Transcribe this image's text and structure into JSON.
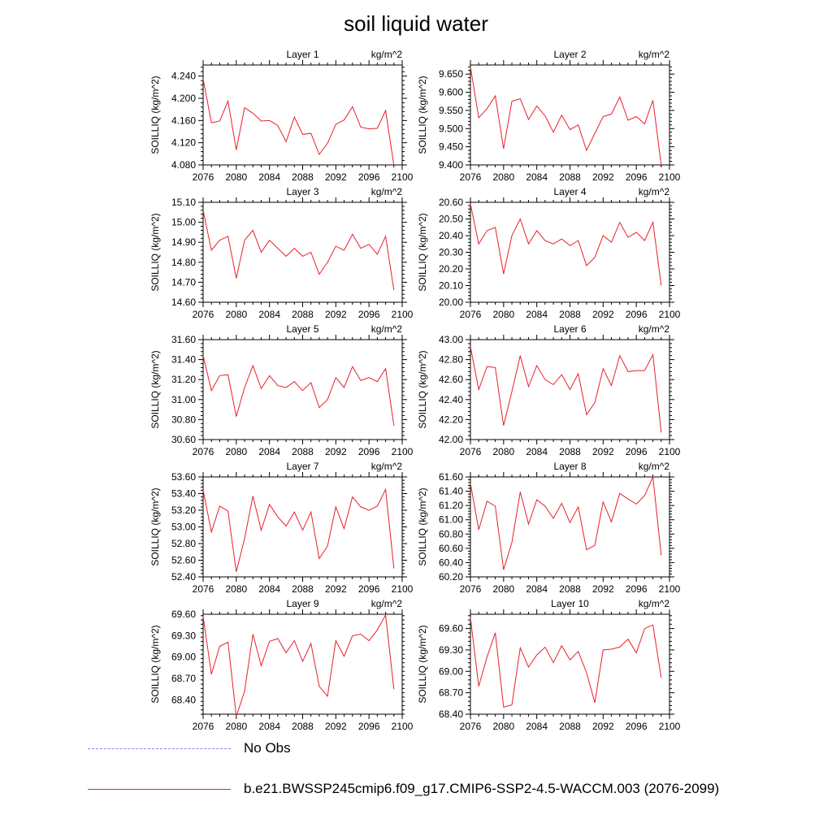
{
  "title": "soil liquid water",
  "legend": [
    {
      "label": "No Obs",
      "color": "#8080ff",
      "style": "dashed"
    },
    {
      "label": "b.e21.BWSSP245cmip6.f09_g17.CMIP6-SSP2-4.5-WACCM.003 (2076-2099)",
      "color": "#e8202a",
      "style": "solid"
    }
  ],
  "chart_data": [
    {
      "type": "line",
      "title": "Layer 1",
      "units": "kg/m^2",
      "ylabel": "SOILLIQ  (kg/m^2)",
      "xlim": [
        2076,
        2100
      ],
      "xticks": [
        "2076",
        "2080",
        "2084",
        "2088",
        "2092",
        "2096",
        "2100"
      ],
      "ylim": [
        4.08,
        4.26
      ],
      "yticks": [
        "4.080",
        "4.120",
        "4.160",
        "4.200",
        "4.240"
      ],
      "x": [
        2076,
        2077,
        2078,
        2079,
        2080,
        2081,
        2082,
        2083,
        2084,
        2085,
        2086,
        2087,
        2088,
        2089,
        2090,
        2091,
        2092,
        2093,
        2094,
        2095,
        2096,
        2097,
        2098,
        2099
      ],
      "series": [
        {
          "values": [
            4.235,
            4.156,
            4.159,
            4.195,
            4.107,
            4.183,
            4.173,
            4.159,
            4.16,
            4.151,
            4.122,
            4.166,
            4.135,
            4.137,
            4.099,
            4.119,
            4.153,
            4.161,
            4.185,
            4.148,
            4.145,
            4.146,
            4.178,
            4.079
          ]
        }
      ]
    },
    {
      "type": "line",
      "title": "Layer 2",
      "units": "kg/m^2",
      "ylabel": "SOILLIQ  (kg/m^2)",
      "xlim": [
        2076,
        2100
      ],
      "xticks": [
        "2076",
        "2080",
        "2084",
        "2088",
        "2092",
        "2096",
        "2100"
      ],
      "ylim": [
        9.4,
        9.675
      ],
      "yticks": [
        "9.400",
        "9.450",
        "9.500",
        "9.550",
        "9.600",
        "9.650"
      ],
      "x": [
        2076,
        2077,
        2078,
        2079,
        2080,
        2081,
        2082,
        2083,
        2084,
        2085,
        2086,
        2087,
        2088,
        2089,
        2090,
        2091,
        2092,
        2093,
        2094,
        2095,
        2096,
        2097,
        2098,
        2099
      ],
      "series": [
        {
          "values": [
            9.67,
            9.53,
            9.555,
            9.59,
            9.445,
            9.575,
            9.582,
            9.525,
            9.562,
            9.535,
            9.49,
            9.537,
            9.497,
            9.51,
            9.44,
            9.487,
            9.533,
            9.54,
            9.587,
            9.523,
            9.533,
            9.513,
            9.578,
            9.4
          ]
        }
      ]
    },
    {
      "type": "line",
      "title": "Layer 3",
      "units": "kg/m^2",
      "ylabel": "SOILLIQ  (kg/m^2)",
      "xlim": [
        2076,
        2100
      ],
      "xticks": [
        "2076",
        "2080",
        "2084",
        "2088",
        "2092",
        "2096",
        "2100"
      ],
      "ylim": [
        14.6,
        15.1
      ],
      "yticks": [
        "14.60",
        "14.70",
        "14.80",
        "14.90",
        "15.00",
        "15.10"
      ],
      "x": [
        2076,
        2077,
        2078,
        2079,
        2080,
        2081,
        2082,
        2083,
        2084,
        2085,
        2086,
        2087,
        2088,
        2089,
        2090,
        2091,
        2092,
        2093,
        2094,
        2095,
        2096,
        2097,
        2098,
        2099
      ],
      "series": [
        {
          "values": [
            15.06,
            14.86,
            14.91,
            14.93,
            14.72,
            14.91,
            14.96,
            14.85,
            14.91,
            14.87,
            14.83,
            14.87,
            14.83,
            14.85,
            14.74,
            14.8,
            14.88,
            14.86,
            14.94,
            14.87,
            14.89,
            14.84,
            14.93,
            14.66
          ]
        }
      ]
    },
    {
      "type": "line",
      "title": "Layer 4",
      "units": "kg/m^2",
      "ylabel": "SOILLIQ  (kg/m^2)",
      "xlim": [
        2076,
        2100
      ],
      "xticks": [
        "2076",
        "2080",
        "2084",
        "2088",
        "2092",
        "2096",
        "2100"
      ],
      "ylim": [
        20.0,
        20.6
      ],
      "yticks": [
        "20.00",
        "20.10",
        "20.20",
        "20.30",
        "20.40",
        "20.50",
        "20.60"
      ],
      "x": [
        2076,
        2077,
        2078,
        2079,
        2080,
        2081,
        2082,
        2083,
        2084,
        2085,
        2086,
        2087,
        2088,
        2089,
        2090,
        2091,
        2092,
        2093,
        2094,
        2095,
        2096,
        2097,
        2098,
        2099
      ],
      "series": [
        {
          "values": [
            20.59,
            20.35,
            20.43,
            20.45,
            20.17,
            20.4,
            20.5,
            20.35,
            20.43,
            20.37,
            20.35,
            20.38,
            20.34,
            20.37,
            20.22,
            20.27,
            20.4,
            20.36,
            20.48,
            20.39,
            20.42,
            20.37,
            20.48,
            20.1
          ]
        }
      ]
    },
    {
      "type": "line",
      "title": "Layer 5",
      "units": "kg/m^2",
      "ylabel": "SOILLIQ  (kg/m^2)",
      "xlim": [
        2076,
        2100
      ],
      "xticks": [
        "2076",
        "2080",
        "2084",
        "2088",
        "2092",
        "2096",
        "2100"
      ],
      "ylim": [
        30.6,
        31.6
      ],
      "yticks": [
        "30.60",
        "30.80",
        "31.00",
        "31.20",
        "31.40",
        "31.60"
      ],
      "x": [
        2076,
        2077,
        2078,
        2079,
        2080,
        2081,
        2082,
        2083,
        2084,
        2085,
        2086,
        2087,
        2088,
        2089,
        2090,
        2091,
        2092,
        2093,
        2094,
        2095,
        2096,
        2097,
        2098,
        2099
      ],
      "series": [
        {
          "values": [
            31.44,
            31.09,
            31.24,
            31.25,
            30.83,
            31.12,
            31.34,
            31.11,
            31.24,
            31.14,
            31.12,
            31.18,
            31.09,
            31.17,
            30.92,
            31.0,
            31.22,
            31.12,
            31.33,
            31.19,
            31.22,
            31.18,
            31.31,
            30.74
          ]
        }
      ]
    },
    {
      "type": "line",
      "title": "Layer 6",
      "units": "kg/m^2",
      "ylabel": "SOILLIQ  (kg/m^2)",
      "xlim": [
        2076,
        2100
      ],
      "xticks": [
        "2076",
        "2080",
        "2084",
        "2088",
        "2092",
        "2096",
        "2100"
      ],
      "ylim": [
        42.0,
        43.0
      ],
      "yticks": [
        "42.00",
        "42.20",
        "42.40",
        "42.60",
        "42.80",
        "43.00"
      ],
      "x": [
        2076,
        2077,
        2078,
        2079,
        2080,
        2081,
        2082,
        2083,
        2084,
        2085,
        2086,
        2087,
        2088,
        2089,
        2090,
        2091,
        2092,
        2093,
        2094,
        2095,
        2096,
        2097,
        2098,
        2099
      ],
      "series": [
        {
          "values": [
            42.93,
            42.5,
            42.73,
            42.72,
            42.14,
            42.48,
            42.84,
            42.53,
            42.74,
            42.6,
            42.55,
            42.65,
            42.5,
            42.66,
            42.25,
            42.37,
            42.71,
            42.54,
            42.84,
            42.68,
            42.69,
            42.69,
            42.85,
            42.07
          ]
        }
      ]
    },
    {
      "type": "line",
      "title": "Layer 7",
      "units": "kg/m^2",
      "ylabel": "SOILLIQ  (kg/m^2)",
      "xlim": [
        2076,
        2100
      ],
      "xticks": [
        "2076",
        "2080",
        "2084",
        "2088",
        "2092",
        "2096",
        "2100"
      ],
      "ylim": [
        52.4,
        53.6
      ],
      "yticks": [
        "52.40",
        "52.60",
        "52.80",
        "53.00",
        "53.20",
        "53.40",
        "53.60"
      ],
      "x": [
        2076,
        2077,
        2078,
        2079,
        2080,
        2081,
        2082,
        2083,
        2084,
        2085,
        2086,
        2087,
        2088,
        2089,
        2090,
        2091,
        2092,
        2093,
        2094,
        2095,
        2096,
        2097,
        2098,
        2099
      ],
      "series": [
        {
          "values": [
            53.44,
            52.94,
            53.25,
            53.19,
            52.46,
            52.86,
            53.37,
            52.96,
            53.27,
            53.12,
            53.01,
            53.18,
            52.96,
            53.18,
            52.62,
            52.77,
            53.24,
            52.98,
            53.36,
            53.24,
            53.2,
            53.25,
            53.45,
            52.5
          ]
        }
      ]
    },
    {
      "type": "line",
      "title": "Layer 8",
      "units": "kg/m^2",
      "ylabel": "SOILLIQ  (kg/m^2)",
      "xlim": [
        2076,
        2100
      ],
      "xticks": [
        "2076",
        "2080",
        "2084",
        "2088",
        "2092",
        "2096",
        "2100"
      ],
      "ylim": [
        60.2,
        61.6
      ],
      "yticks": [
        "60.20",
        "60.40",
        "60.60",
        "60.80",
        "61.00",
        "61.20",
        "61.40",
        "61.60"
      ],
      "x": [
        2076,
        2077,
        2078,
        2079,
        2080,
        2081,
        2082,
        2083,
        2084,
        2085,
        2086,
        2087,
        2088,
        2089,
        2090,
        2091,
        2092,
        2093,
        2094,
        2095,
        2096,
        2097,
        2098,
        2099
      ],
      "series": [
        {
          "values": [
            61.51,
            60.86,
            61.26,
            61.19,
            60.3,
            60.68,
            61.39,
            60.94,
            61.28,
            61.19,
            61.02,
            61.23,
            60.96,
            61.18,
            60.58,
            60.64,
            61.25,
            60.97,
            61.37,
            61.29,
            61.22,
            61.34,
            61.6,
            60.5
          ]
        }
      ]
    },
    {
      "type": "line",
      "title": "Layer 9",
      "units": "kg/m^2",
      "ylabel": "SOILLIQ  (kg/m^2)",
      "xlim": [
        2076,
        2100
      ],
      "xticks": [
        "2076",
        "2080",
        "2084",
        "2088",
        "2092",
        "2096",
        "2100"
      ],
      "ylim": [
        68.2,
        69.6
      ],
      "yticks": [
        "68.40",
        "68.70",
        "69.00",
        "69.30",
        "69.60"
      ],
      "x": [
        2076,
        2077,
        2078,
        2079,
        2080,
        2081,
        2082,
        2083,
        2084,
        2085,
        2086,
        2087,
        2088,
        2089,
        2090,
        2091,
        2092,
        2093,
        2094,
        2095,
        2096,
        2097,
        2098,
        2099
      ],
      "series": [
        {
          "values": [
            69.57,
            68.76,
            69.15,
            69.21,
            68.17,
            68.52,
            69.32,
            68.88,
            69.22,
            69.26,
            69.06,
            69.23,
            68.94,
            69.19,
            68.59,
            68.45,
            69.23,
            69.01,
            69.3,
            69.32,
            69.23,
            69.38,
            69.59,
            68.55
          ]
        }
      ]
    },
    {
      "type": "line",
      "title": "Layer 10",
      "units": "kg/m^2",
      "ylabel": "SOILLIQ  (kg/m^2)",
      "xlim": [
        2076,
        2100
      ],
      "xticks": [
        "2076",
        "2080",
        "2084",
        "2088",
        "2092",
        "2096",
        "2100"
      ],
      "ylim": [
        68.4,
        69.8
      ],
      "yticks": [
        "68.40",
        "68.70",
        "69.00",
        "69.30",
        "69.60"
      ],
      "x": [
        2076,
        2077,
        2078,
        2079,
        2080,
        2081,
        2082,
        2083,
        2084,
        2085,
        2086,
        2087,
        2088,
        2089,
        2090,
        2091,
        2092,
        2093,
        2094,
        2095,
        2096,
        2097,
        2098,
        2099
      ],
      "series": [
        {
          "values": [
            69.75,
            68.79,
            69.2,
            69.54,
            68.5,
            68.53,
            69.33,
            69.06,
            69.23,
            69.34,
            69.12,
            69.36,
            69.16,
            69.28,
            68.98,
            68.56,
            69.3,
            69.31,
            69.34,
            69.45,
            69.26,
            69.6,
            69.65,
            68.91
          ]
        }
      ]
    }
  ]
}
